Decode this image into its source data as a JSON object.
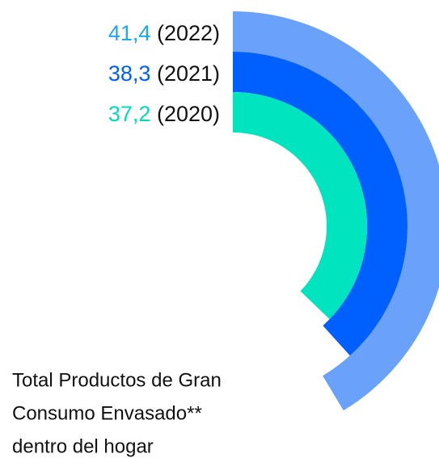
{
  "chart_data": {
    "type": "radial_bar",
    "series": [
      {
        "name": "(2022)",
        "color": "#6aa1fb",
        "label_color": "#1aa8f0",
        "values": [
          41.4
        ],
        "value_labels": [
          "41,4"
        ]
      },
      {
        "name": "(2021)",
        "color": "#0060ff",
        "label_color": "#0060ff",
        "values": [
          38.3
        ],
        "value_labels": [
          "38,3"
        ]
      },
      {
        "name": "(2020)",
        "color": "#00e5c0",
        "label_color": "#00dcb8",
        "values": [
          37.2
        ],
        "value_labels": [
          "37,2"
        ]
      }
    ],
    "ylim": [
      0,
      100
    ],
    "annotation": [
      "Total Productos de Gran",
      "Consumo Envasado**",
      "dentro del hogar"
    ]
  }
}
